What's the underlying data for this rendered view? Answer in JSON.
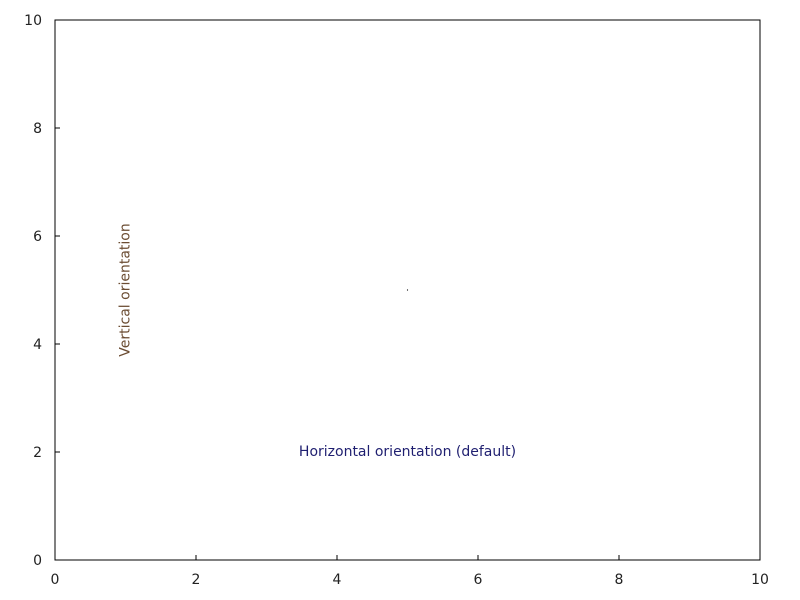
{
  "chart_data": {
    "type": "scatter",
    "title": "",
    "xlabel": "",
    "ylabel": "",
    "xlim": [
      0,
      10
    ],
    "ylim": [
      0,
      10
    ],
    "grid": false,
    "x_ticks": [
      "0",
      "2",
      "4",
      "6",
      "8",
      "10"
    ],
    "y_ticks": [
      "0",
      "2",
      "4",
      "6",
      "8",
      "10"
    ],
    "series": [
      {
        "x": [
          5
        ],
        "y": [
          5
        ],
        "color": "#000000"
      }
    ],
    "annotations": [
      {
        "text": "Vertical orientation",
        "x": 1,
        "y": 5,
        "rotation": 90,
        "color": "#6b4c32"
      },
      {
        "text": "Horizontal orientation (default)",
        "x": 5,
        "y": 2,
        "rotation": 0,
        "color": "#1f1f70"
      }
    ]
  }
}
